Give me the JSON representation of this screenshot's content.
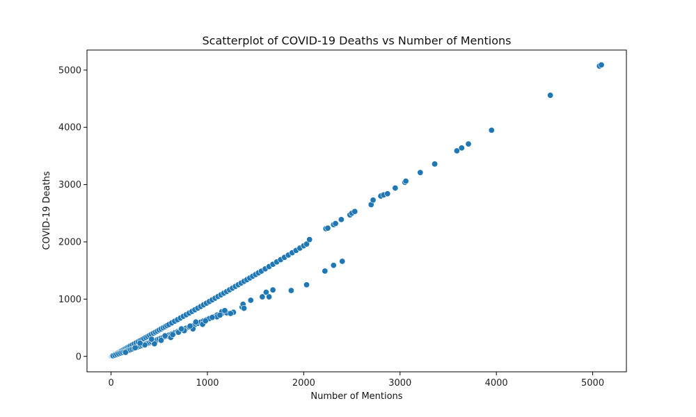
{
  "chart_data": {
    "type": "scatter",
    "title": "Scatterplot of COVID-19 Deaths vs Number of Mentions",
    "xlabel": "Number of Mentions",
    "ylabel": "COVID-19 Deaths",
    "xlim": [
      -250,
      5350
    ],
    "ylim": [
      -270,
      5350
    ],
    "xticks": [
      0,
      1000,
      2000,
      3000,
      4000,
      5000
    ],
    "yticks": [
      0,
      1000,
      2000,
      3000,
      4000,
      5000
    ],
    "grid": false,
    "colors": {
      "marker": "#1f77b4",
      "marker_edge": "#ffffff"
    },
    "series": [
      {
        "points": [
          [
            0,
            0
          ],
          [
            5,
            3
          ],
          [
            10,
            8
          ],
          [
            15,
            12
          ],
          [
            20,
            18
          ],
          [
            30,
            26
          ],
          [
            40,
            36
          ],
          [
            50,
            45
          ],
          [
            60,
            55
          ],
          [
            70,
            63
          ],
          [
            80,
            72
          ],
          [
            90,
            80
          ],
          [
            100,
            90
          ],
          [
            110,
            98
          ],
          [
            125,
            112
          ],
          [
            140,
            127
          ],
          [
            155,
            140
          ],
          [
            170,
            155
          ],
          [
            185,
            168
          ],
          [
            200,
            182
          ],
          [
            220,
            200
          ],
          [
            240,
            218
          ],
          [
            260,
            237
          ],
          [
            280,
            255
          ],
          [
            300,
            274
          ],
          [
            320,
            292
          ],
          [
            340,
            311
          ],
          [
            360,
            330
          ],
          [
            380,
            348
          ],
          [
            400,
            367
          ],
          [
            420,
            386
          ],
          [
            440,
            404
          ],
          [
            460,
            423
          ],
          [
            480,
            442
          ],
          [
            500,
            461
          ],
          [
            520,
            480
          ],
          [
            540,
            499
          ],
          [
            560,
            518
          ],
          [
            580,
            537
          ],
          [
            600,
            556
          ],
          [
            630,
            585
          ],
          [
            660,
            613
          ],
          [
            690,
            641
          ],
          [
            720,
            670
          ],
          [
            750,
            699
          ],
          [
            780,
            727
          ],
          [
            810,
            756
          ],
          [
            840,
            785
          ],
          [
            870,
            813
          ],
          [
            900,
            842
          ],
          [
            930,
            871
          ],
          [
            960,
            900
          ],
          [
            990,
            929
          ],
          [
            1020,
            958
          ],
          [
            1050,
            987
          ],
          [
            1080,
            1016
          ],
          [
            1110,
            1045
          ],
          [
            1140,
            1074
          ],
          [
            1170,
            1103
          ],
          [
            1200,
            1132
          ],
          [
            1230,
            1162
          ],
          [
            1260,
            1191
          ],
          [
            1290,
            1221
          ],
          [
            1320,
            1250
          ],
          [
            1350,
            1280
          ],
          [
            1380,
            1310
          ],
          [
            1410,
            1339
          ],
          [
            1440,
            1369
          ],
          [
            1470,
            1399
          ],
          [
            1500,
            1429
          ],
          [
            1530,
            1459
          ],
          [
            1560,
            1489
          ],
          [
            1600,
            1528
          ],
          [
            1640,
            1568
          ],
          [
            1680,
            1608
          ],
          [
            1720,
            1649
          ],
          [
            1760,
            1689
          ],
          [
            1800,
            1729
          ],
          [
            1840,
            1769
          ],
          [
            1880,
            1810
          ],
          [
            1920,
            1850
          ],
          [
            1960,
            1890
          ],
          [
            2000,
            1931
          ],
          [
            2030,
            1962
          ],
          [
            2060,
            2040
          ],
          [
            2230,
            2230
          ],
          [
            2250,
            2240
          ],
          [
            2310,
            2300
          ],
          [
            2330,
            2320
          ],
          [
            2390,
            2390
          ],
          [
            2480,
            2470
          ],
          [
            2500,
            2500
          ],
          [
            2530,
            2530
          ],
          [
            2700,
            2650
          ],
          [
            2720,
            2730
          ],
          [
            2800,
            2800
          ],
          [
            2830,
            2820
          ],
          [
            2870,
            2840
          ],
          [
            2950,
            2940
          ],
          [
            3050,
            3040
          ],
          [
            3060,
            3060
          ],
          [
            3210,
            3210
          ],
          [
            3360,
            3360
          ],
          [
            3590,
            3590
          ],
          [
            3640,
            3640
          ],
          [
            3710,
            3710
          ],
          [
            3950,
            3950
          ],
          [
            4560,
            4560
          ],
          [
            5070,
            5070
          ],
          [
            5090,
            5090
          ],
          [
            20,
            10
          ],
          [
            40,
            22
          ],
          [
            60,
            34
          ],
          [
            80,
            45
          ],
          [
            100,
            57
          ],
          [
            120,
            68
          ],
          [
            140,
            80
          ],
          [
            160,
            92
          ],
          [
            180,
            104
          ],
          [
            200,
            116
          ],
          [
            220,
            128
          ],
          [
            240,
            140
          ],
          [
            260,
            152
          ],
          [
            280,
            165
          ],
          [
            300,
            177
          ],
          [
            320,
            190
          ],
          [
            340,
            202
          ],
          [
            360,
            215
          ],
          [
            380,
            228
          ],
          [
            400,
            240
          ],
          [
            420,
            253
          ],
          [
            440,
            266
          ],
          [
            460,
            279
          ],
          [
            480,
            292
          ],
          [
            500,
            305
          ],
          [
            520,
            318
          ],
          [
            540,
            331
          ],
          [
            560,
            344
          ],
          [
            580,
            357
          ],
          [
            600,
            371
          ],
          [
            630,
            391
          ],
          [
            660,
            411
          ],
          [
            690,
            432
          ],
          [
            720,
            452
          ],
          [
            750,
            473
          ],
          [
            780,
            493
          ],
          [
            810,
            514
          ],
          [
            840,
            535
          ],
          [
            870,
            556
          ],
          [
            900,
            577
          ],
          [
            930,
            598
          ],
          [
            960,
            619
          ],
          [
            990,
            640
          ],
          [
            1020,
            660
          ],
          [
            1060,
            690
          ],
          [
            1100,
            720
          ],
          [
            1150,
            750
          ],
          [
            1200,
            760
          ],
          [
            1270,
            770
          ],
          [
            1360,
            860
          ],
          [
            1370,
            910
          ],
          [
            1380,
            840
          ],
          [
            1450,
            980
          ],
          [
            1570,
            1040
          ],
          [
            1610,
            1120
          ],
          [
            1640,
            1040
          ],
          [
            1680,
            1160
          ],
          [
            1870,
            1150
          ],
          [
            2030,
            1250
          ],
          [
            2220,
            1490
          ],
          [
            2310,
            1590
          ],
          [
            2400,
            1660
          ],
          [
            150,
            70
          ],
          [
            250,
            150
          ],
          [
            350,
            200
          ],
          [
            450,
            220
          ],
          [
            520,
            280
          ],
          [
            620,
            330
          ],
          [
            700,
            420
          ],
          [
            760,
            450
          ],
          [
            850,
            480
          ],
          [
            950,
            560
          ],
          [
            1100,
            690
          ],
          [
            1150,
            780
          ],
          [
            1180,
            800
          ],
          [
            300,
            230
          ],
          [
            420,
            300
          ],
          [
            560,
            360
          ],
          [
            640,
            380
          ],
          [
            730,
            480
          ],
          [
            820,
            530
          ],
          [
            880,
            600
          ],
          [
            980,
            620
          ],
          [
            1050,
            680
          ],
          [
            1130,
            720
          ],
          [
            1240,
            750
          ]
        ]
      }
    ]
  }
}
